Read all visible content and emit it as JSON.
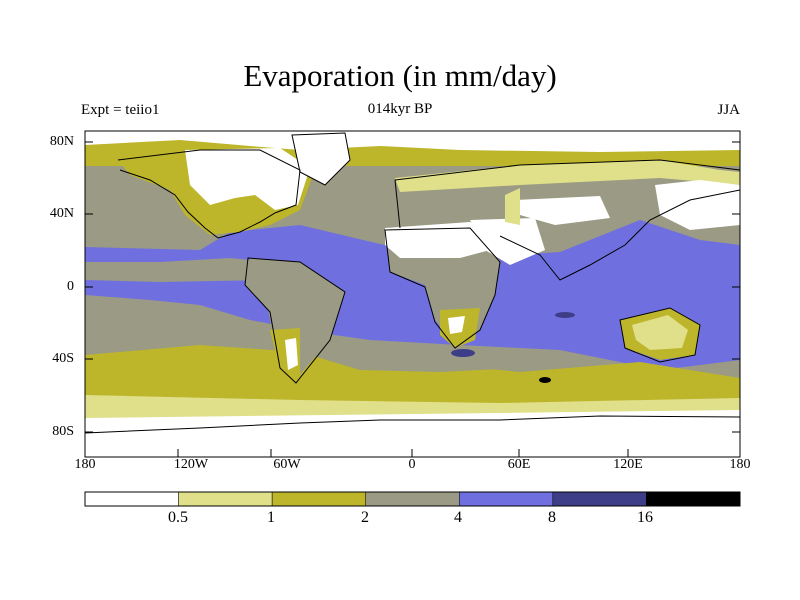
{
  "title": "Evaporation (in mm/day)",
  "subtitle": "014kyr BP",
  "experiment": "Expt = teiio1",
  "season": "JJA",
  "map": {
    "projection": "cylindrical-equidistant",
    "lon_range": [
      -180,
      180
    ],
    "lat_range": [
      -90,
      90
    ],
    "lat_labels": [
      "80N",
      "40N",
      "0",
      "40S",
      "80S"
    ],
    "lon_labels": [
      "180",
      "120W",
      "60W",
      "0",
      "60E",
      "120E",
      "180"
    ]
  },
  "colorbar": {
    "colors": [
      "#ffffff",
      "#e0df8a",
      "#bdb62b",
      "#9a9a85",
      "#6f6fe0",
      "#3e3e88",
      "#000000"
    ],
    "labels": [
      "0.5",
      "1",
      "2",
      "4",
      "8",
      "16"
    ]
  },
  "chart_data": {
    "type": "heatmap",
    "title": "Evaporation (in mm/day)",
    "subtitle": "014kyr BP",
    "annotations": [
      "Expt = teiio1",
      "JJA"
    ],
    "units": "mm/day",
    "bins": [
      {
        "range": "<0.5",
        "color": "#ffffff"
      },
      {
        "range": "0.5-1",
        "color": "#e0df8a"
      },
      {
        "range": "1-2",
        "color": "#bdb62b"
      },
      {
        "range": "2-4",
        "color": "#9a9a85"
      },
      {
        "range": "4-8",
        "color": "#6f6fe0"
      },
      {
        "range": "8-16",
        "color": "#3e3e88"
      },
      {
        "range": ">16",
        "color": "#000000"
      }
    ],
    "regions": [
      {
        "region": "Tropical/subtropical oceans (15N–35S)",
        "bin": "4-8"
      },
      {
        "region": "Mid-latitude oceans",
        "bin": "2-4"
      },
      {
        "region": "Southern Ocean (~50–60S)",
        "bin": "1-2"
      },
      {
        "region": "Antarctica",
        "bin": "<0.5"
      },
      {
        "region": "Sahara and Arabia",
        "bin": "<0.5"
      },
      {
        "region": "Central Asian deserts",
        "bin": "<0.5"
      },
      {
        "region": "Western Australia interior",
        "bin": "0.5-1"
      },
      {
        "region": "Northern Eurasia",
        "bin": "2-4"
      },
      {
        "region": "Equatorial Africa and Amazon",
        "bin": "2-4"
      },
      {
        "region": "Arctic / Greenland",
        "bin": "<0.5"
      }
    ]
  }
}
